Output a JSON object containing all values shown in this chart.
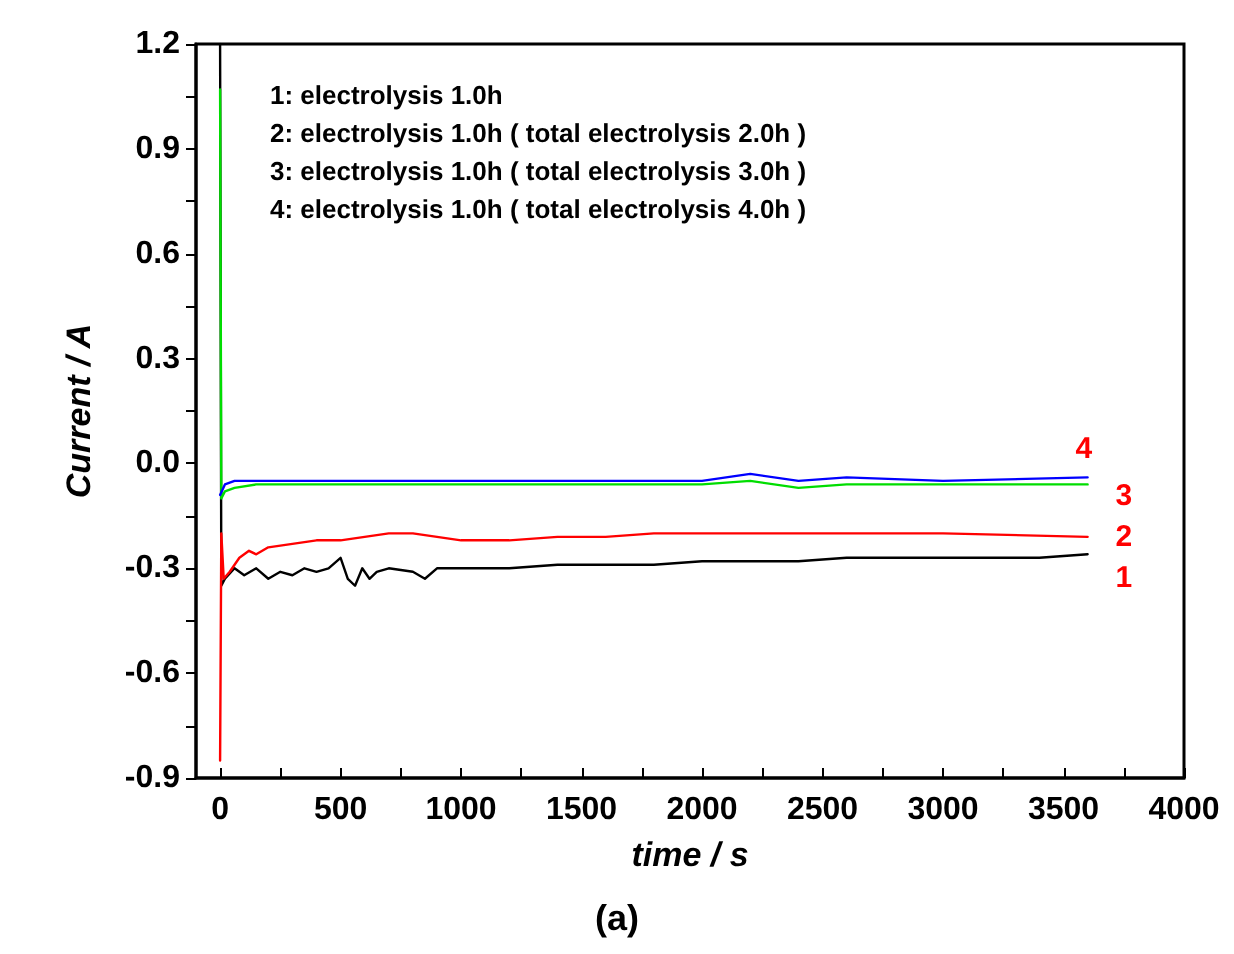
{
  "chart_data": {
    "type": "line",
    "xlabel": "time / s",
    "ylabel": "Current / A",
    "annotations": [
      "1: electrolysis 1.0h\n2: electrolysis 1.0h ( total electrolysis 2.0h )\n3: electrolysis 1.0h ( total electrolysis 3.0h )\n4: electrolysis 1.0h ( total electrolysis 4.0h )",
      "(a)"
    ],
    "xlim": [
      -100,
      4000
    ],
    "ylim": [
      -0.9,
      1.2
    ],
    "xticks": [
      0,
      {
        "value": 250,
        "label": null
      },
      500,
      {
        "value": 750,
        "label": null
      },
      1000,
      {
        "value": 1250,
        "label": null
      },
      1500,
      {
        "value": 1750,
        "label": null
      },
      2000,
      {
        "value": 2250,
        "label": null
      },
      2500,
      {
        "value": 2750,
        "label": null
      },
      3000,
      {
        "value": 3250,
        "label": null
      },
      3500,
      {
        "value": 3750,
        "label": null
      },
      4000
    ],
    "yticks": [
      {
        "value": -0.9,
        "label": "-0.9"
      },
      {
        "value": -0.75,
        "label": null
      },
      {
        "value": -0.6,
        "label": "-0.6"
      },
      {
        "value": -0.45,
        "label": null
      },
      {
        "value": -0.3,
        "label": "-0.3"
      },
      {
        "value": -0.15,
        "label": null
      },
      {
        "value": 0,
        "label": "0.0"
      },
      {
        "value": 0.15,
        "label": null
      },
      {
        "value": 0.3,
        "label": "0.3"
      },
      {
        "value": 0.45,
        "label": null
      },
      {
        "value": 0.6,
        "label": "0.6"
      },
      {
        "value": 0.75,
        "label": null
      },
      {
        "value": 0.9,
        "label": "0.9"
      },
      {
        "value": 1.05,
        "label": null
      },
      {
        "value": 1.2,
        "label": "1.2"
      }
    ],
    "grid": false,
    "legend": false,
    "marker": "none",
    "line_style": "solid",
    "series": [
      {
        "name": "1",
        "color": "#000000",
        "x": [
          0,
          5,
          20,
          60,
          100,
          150,
          200,
          250,
          300,
          350,
          400,
          450,
          500,
          530,
          560,
          590,
          620,
          650,
          700,
          800,
          850,
          900,
          1000,
          1200,
          1400,
          1600,
          1800,
          2000,
          2200,
          2400,
          2600,
          2800,
          3000,
          3200,
          3400,
          3600
        ],
        "values": [
          1.2,
          -0.35,
          -0.33,
          -0.3,
          -0.32,
          -0.3,
          -0.33,
          -0.31,
          -0.32,
          -0.3,
          -0.31,
          -0.3,
          -0.27,
          -0.33,
          -0.35,
          -0.3,
          -0.33,
          -0.31,
          -0.3,
          -0.31,
          -0.33,
          -0.3,
          -0.3,
          -0.3,
          -0.29,
          -0.29,
          -0.29,
          -0.28,
          -0.28,
          -0.28,
          -0.27,
          -0.27,
          -0.27,
          -0.27,
          -0.27,
          -0.26
        ]
      },
      {
        "name": "2",
        "color": "#ff0000",
        "x": [
          0,
          5,
          15,
          40,
          80,
          120,
          150,
          200,
          300,
          400,
          500,
          600,
          700,
          800,
          900,
          1000,
          1200,
          1400,
          1600,
          1800,
          2000,
          2500,
          3000,
          3600
        ],
        "values": [
          -0.85,
          -0.2,
          -0.33,
          -0.31,
          -0.27,
          -0.25,
          -0.26,
          -0.24,
          -0.23,
          -0.22,
          -0.22,
          -0.21,
          -0.2,
          -0.2,
          -0.21,
          -0.22,
          -0.22,
          -0.21,
          -0.21,
          -0.2,
          -0.2,
          -0.2,
          -0.2,
          -0.21
        ]
      },
      {
        "name": "3",
        "color": "#00dd00",
        "x": [
          0,
          5,
          20,
          60,
          150,
          500,
          1000,
          1500,
          2000,
          2200,
          2400,
          2600,
          3000,
          3600
        ],
        "values": [
          1.07,
          -0.1,
          -0.08,
          -0.07,
          -0.06,
          -0.06,
          -0.06,
          -0.06,
          -0.06,
          -0.05,
          -0.07,
          -0.06,
          -0.06,
          -0.06
        ]
      },
      {
        "name": "4",
        "color": "#0000ff",
        "x": [
          0,
          20,
          60,
          200,
          500,
          1000,
          1500,
          2000,
          2200,
          2400,
          2600,
          3000,
          3600
        ],
        "values": [
          -0.09,
          -0.06,
          -0.05,
          -0.05,
          -0.05,
          -0.05,
          -0.05,
          -0.05,
          -0.03,
          -0.05,
          -0.04,
          -0.05,
          -0.04
        ]
      }
    ]
  }
}
